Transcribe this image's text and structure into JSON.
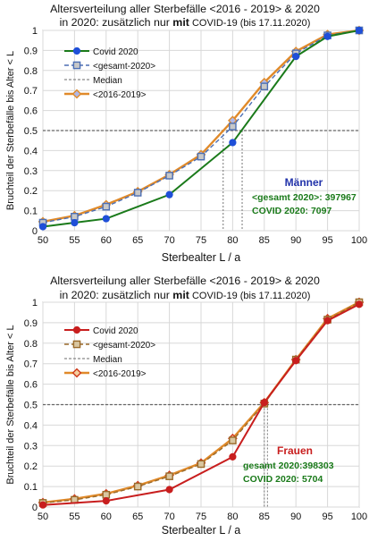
{
  "chart_data": [
    {
      "type": "line",
      "title_line1": "Altersverteilung aller Sterbefälle <2016 - 2019> & 2020",
      "title_line2_pre": "in 2020: zusätzlich nur ",
      "title_line2_bold": "mit",
      "title_line2_post": " COVID-19 (bis 17.11.2020)",
      "xlabel": "Sterbealter  L / a",
      "ylabel": "Bruchteil der Sterbefälle bis Alter  < L",
      "xlim": [
        50,
        100
      ],
      "ylim": [
        0,
        1
      ],
      "x_ticks": [
        "50",
        "55",
        "60",
        "65",
        "70",
        "75",
        "80",
        "85",
        "90",
        "95",
        "100"
      ],
      "y_ticks": [
        "0",
        "0.1",
        "0.2",
        "0.3",
        "0.4",
        "0.5",
        "0.6",
        "0.7",
        "0.8",
        "0.9",
        "1"
      ],
      "median_line": 0.5,
      "medians_x": [
        78.5,
        81.5
      ],
      "grid": true,
      "legend_position": "top-left",
      "colors": {
        "covid": "#1a7a1a",
        "covid_marker": "#1f4fd8",
        "gesamt": "#4d6fb3",
        "median": "#888888",
        "hist": "#e08a2a"
      },
      "series": [
        {
          "name": "Covid 2020",
          "x": [
            50,
            55,
            60,
            70,
            80,
            90,
            95,
            100
          ],
          "values": [
            0.02,
            0.04,
            0.06,
            0.18,
            0.44,
            0.87,
            0.97,
            1.0
          ]
        },
        {
          "name": "<gesamt-2020>",
          "x": [
            50,
            55,
            60,
            65,
            70,
            75,
            80,
            85,
            90,
            95,
            100
          ],
          "values": [
            0.04,
            0.07,
            0.12,
            0.19,
            0.275,
            0.37,
            0.52,
            0.72,
            0.885,
            0.975,
            1.0
          ]
        },
        {
          "name": "Median",
          "x": [],
          "values": []
        },
        {
          "name": "<2016-2019>",
          "x": [
            50,
            55,
            60,
            65,
            70,
            75,
            80,
            85,
            90,
            95,
            100
          ],
          "values": [
            0.045,
            0.075,
            0.13,
            0.195,
            0.28,
            0.38,
            0.55,
            0.74,
            0.895,
            0.98,
            1.0
          ]
        }
      ],
      "annotation": {
        "title": "Männer",
        "line1": "<gesamt 2020>: 397967",
        "line2": "COVID 2020: 7097",
        "title_color": "#2233aa"
      }
    },
    {
      "type": "line",
      "title_line1": "Altersverteilung aller Sterbefälle <2016 - 2019> & 2020",
      "title_line2_pre": "in 2020: zusätzlich nur ",
      "title_line2_bold": "mit",
      "title_line2_post": " COVID-19 (bis 17.11.2020)",
      "xlabel": "Sterbealter  L / a",
      "ylabel": "Bruchteil der Sterbefälle bis Alter  < L",
      "xlim": [
        50,
        100
      ],
      "ylim": [
        0,
        1
      ],
      "x_ticks": [
        "50",
        "55",
        "60",
        "65",
        "70",
        "75",
        "80",
        "85",
        "90",
        "95",
        "100"
      ],
      "y_ticks": [
        "0",
        "0.1",
        "0.2",
        "0.3",
        "0.4",
        "0.5",
        "0.6",
        "0.7",
        "0.8",
        "0.9",
        "1"
      ],
      "median_line": 0.5,
      "medians_x": [
        85,
        85.5
      ],
      "grid": true,
      "legend_position": "top-left",
      "colors": {
        "covid": "#c81e1e",
        "covid_marker": "#c81e1e",
        "gesamt": "#9a6a2a",
        "median": "#888888",
        "hist": "#e08a2a"
      },
      "series": [
        {
          "name": "Covid 2020",
          "x": [
            50,
            60,
            70,
            80,
            85,
            90,
            95,
            100
          ],
          "values": [
            0.01,
            0.03,
            0.085,
            0.245,
            0.51,
            0.715,
            0.91,
            0.99
          ]
        },
        {
          "name": "<gesamt-2020>",
          "x": [
            50,
            55,
            60,
            65,
            70,
            75,
            80,
            85,
            90,
            95,
            100
          ],
          "values": [
            0.02,
            0.035,
            0.06,
            0.1,
            0.15,
            0.21,
            0.325,
            0.505,
            0.72,
            0.915,
            1.0
          ]
        },
        {
          "name": "Median",
          "x": [],
          "values": []
        },
        {
          "name": "<2016-2019>",
          "x": [
            50,
            55,
            60,
            65,
            70,
            75,
            80,
            85,
            90,
            95,
            100
          ],
          "values": [
            0.022,
            0.04,
            0.065,
            0.105,
            0.155,
            0.215,
            0.335,
            0.51,
            0.72,
            0.92,
            1.0
          ]
        }
      ],
      "annotation": {
        "title": "Frauen",
        "line1": "gesamt 2020:398303",
        "line2": "COVID 2020: 5704",
        "title_color": "#c81e1e"
      }
    }
  ]
}
